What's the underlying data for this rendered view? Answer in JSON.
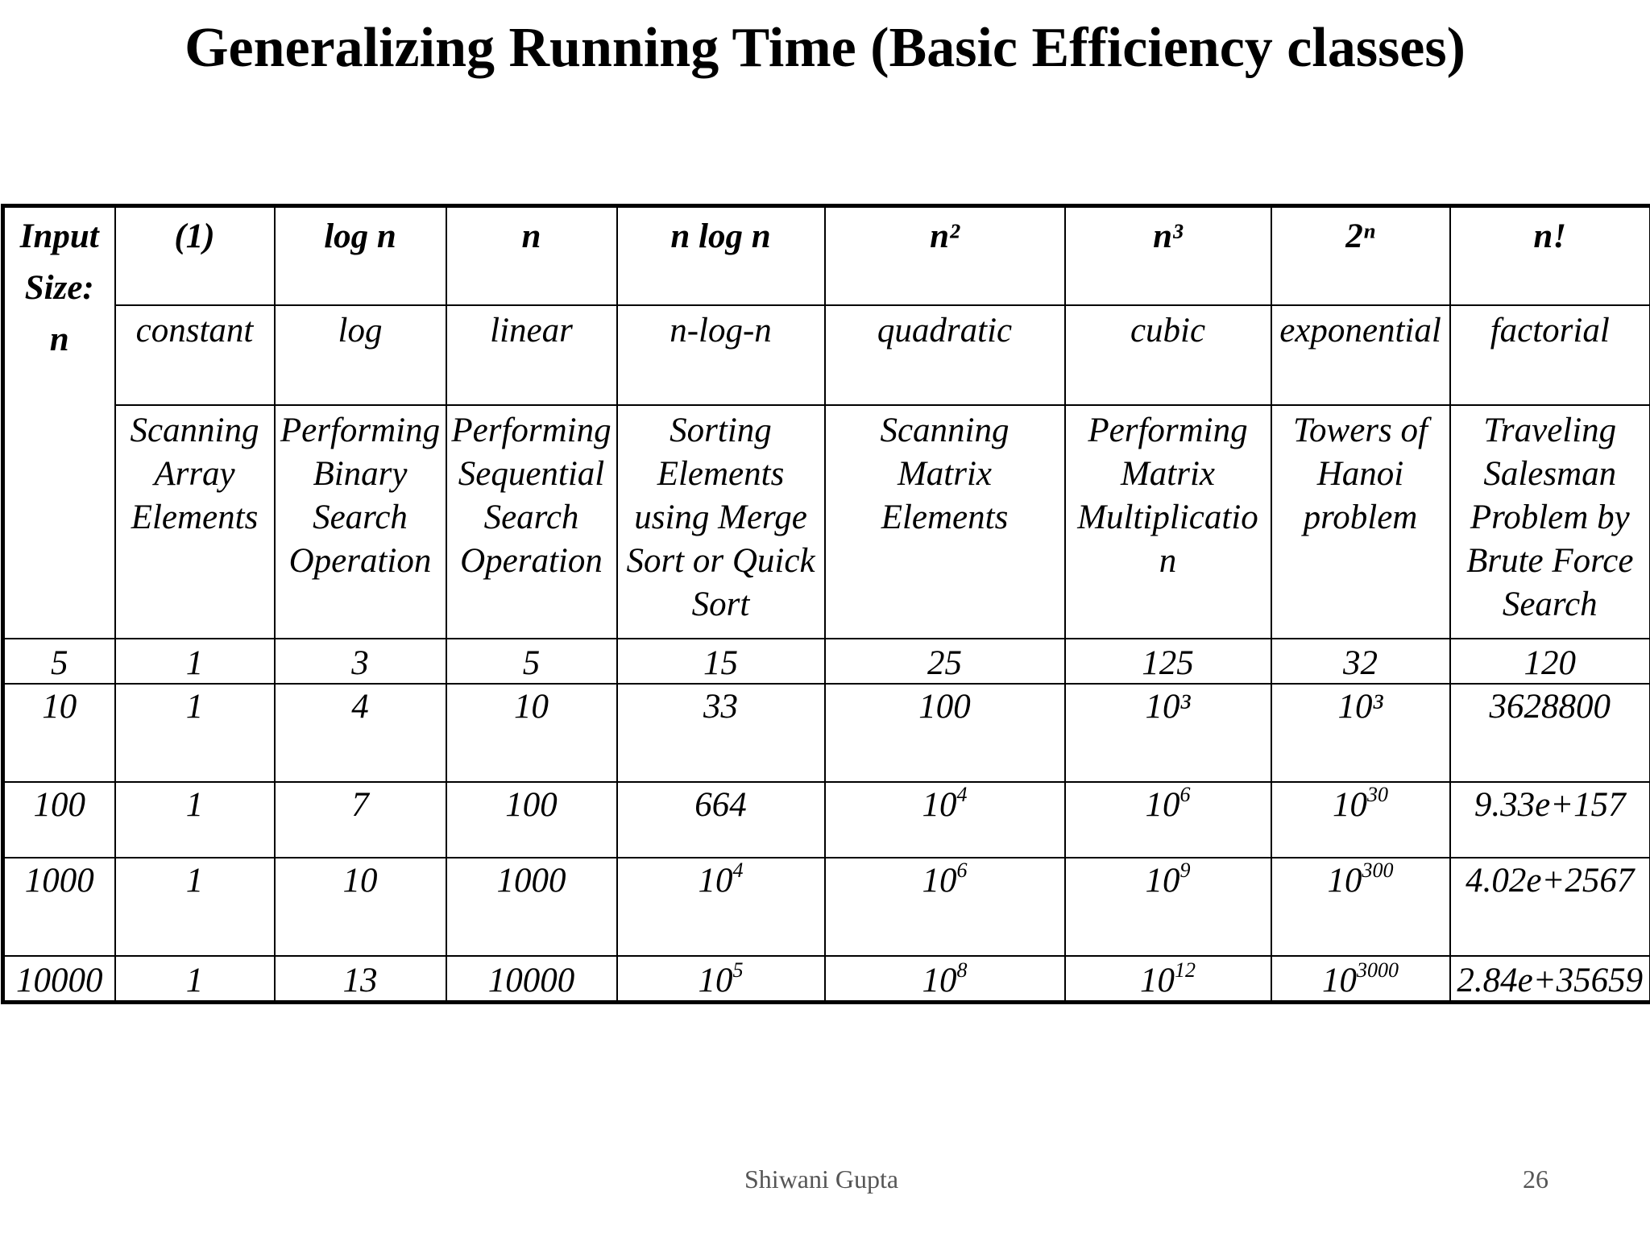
{
  "title": "Generalizing Running Time (Basic Efficiency classes)",
  "table": {
    "input_header_lines": [
      "Input",
      "Size:",
      "n"
    ],
    "columns": [
      {
        "notation": "(1)",
        "name": "constant",
        "example_lines": [
          "Scanning",
          "Array",
          "Elements"
        ]
      },
      {
        "notation": "log n",
        "name": "log",
        "example_lines": [
          "Performing",
          "Binary",
          "Search",
          "Operation"
        ]
      },
      {
        "notation": "n",
        "name": "linear",
        "example_lines": [
          "Performing",
          "Sequential",
          "Search",
          "Operation"
        ]
      },
      {
        "notation": "n log n",
        "name": "n-log-n",
        "example_lines": [
          "Sorting",
          "Elements",
          "using Merge",
          "Sort or Quick",
          "Sort"
        ]
      },
      {
        "notation": "n²",
        "name": "quadratic",
        "example_lines": [
          "Scanning",
          "Matrix",
          "Elements"
        ]
      },
      {
        "notation": "n³",
        "name": "cubic",
        "example_lines": [
          "Performing",
          "Matrix",
          "Multiplicatio",
          "n"
        ]
      },
      {
        "notation": "2ⁿ",
        "name": "exponential",
        "example_lines": [
          "Towers of",
          "Hanoi",
          "problem"
        ]
      },
      {
        "notation": "n!",
        "name": "factorial",
        "example_lines": [
          "Traveling",
          "Salesman",
          "Problem by",
          "Brute Force",
          "Search"
        ]
      }
    ],
    "rows": [
      {
        "n": "5",
        "values": [
          "1",
          "3",
          "5",
          "15",
          "25",
          "125",
          "32",
          "120"
        ]
      },
      {
        "n": "10",
        "values": [
          "1",
          "4",
          "10",
          "33",
          "100",
          "10³",
          "10³",
          "3628800"
        ]
      },
      {
        "n": "100",
        "values": [
          "1",
          "7",
          "100",
          "664",
          {
            "base": "10",
            "exp": "4"
          },
          {
            "base": "10",
            "exp": "6"
          },
          {
            "base": "10",
            "exp": "30"
          },
          "9.33e+157"
        ]
      },
      {
        "n": "1000",
        "values": [
          "1",
          "10",
          "1000",
          {
            "base": "10",
            "exp": "4"
          },
          {
            "base": "10",
            "exp": "6"
          },
          {
            "base": "10",
            "exp": "9"
          },
          {
            "base": "10",
            "exp": "300"
          },
          "4.02e+2567"
        ]
      },
      {
        "n": "10000",
        "values": [
          "1",
          "13",
          "10000",
          {
            "base": "10",
            "exp": "5"
          },
          {
            "base": "10",
            "exp": "8"
          },
          {
            "base": "10",
            "exp": "12"
          },
          {
            "base": "10",
            "exp": "3000"
          },
          "2.84e+35659"
        ]
      }
    ]
  },
  "footer": {
    "author": "Shiwani Gupta",
    "page_number": "26"
  }
}
